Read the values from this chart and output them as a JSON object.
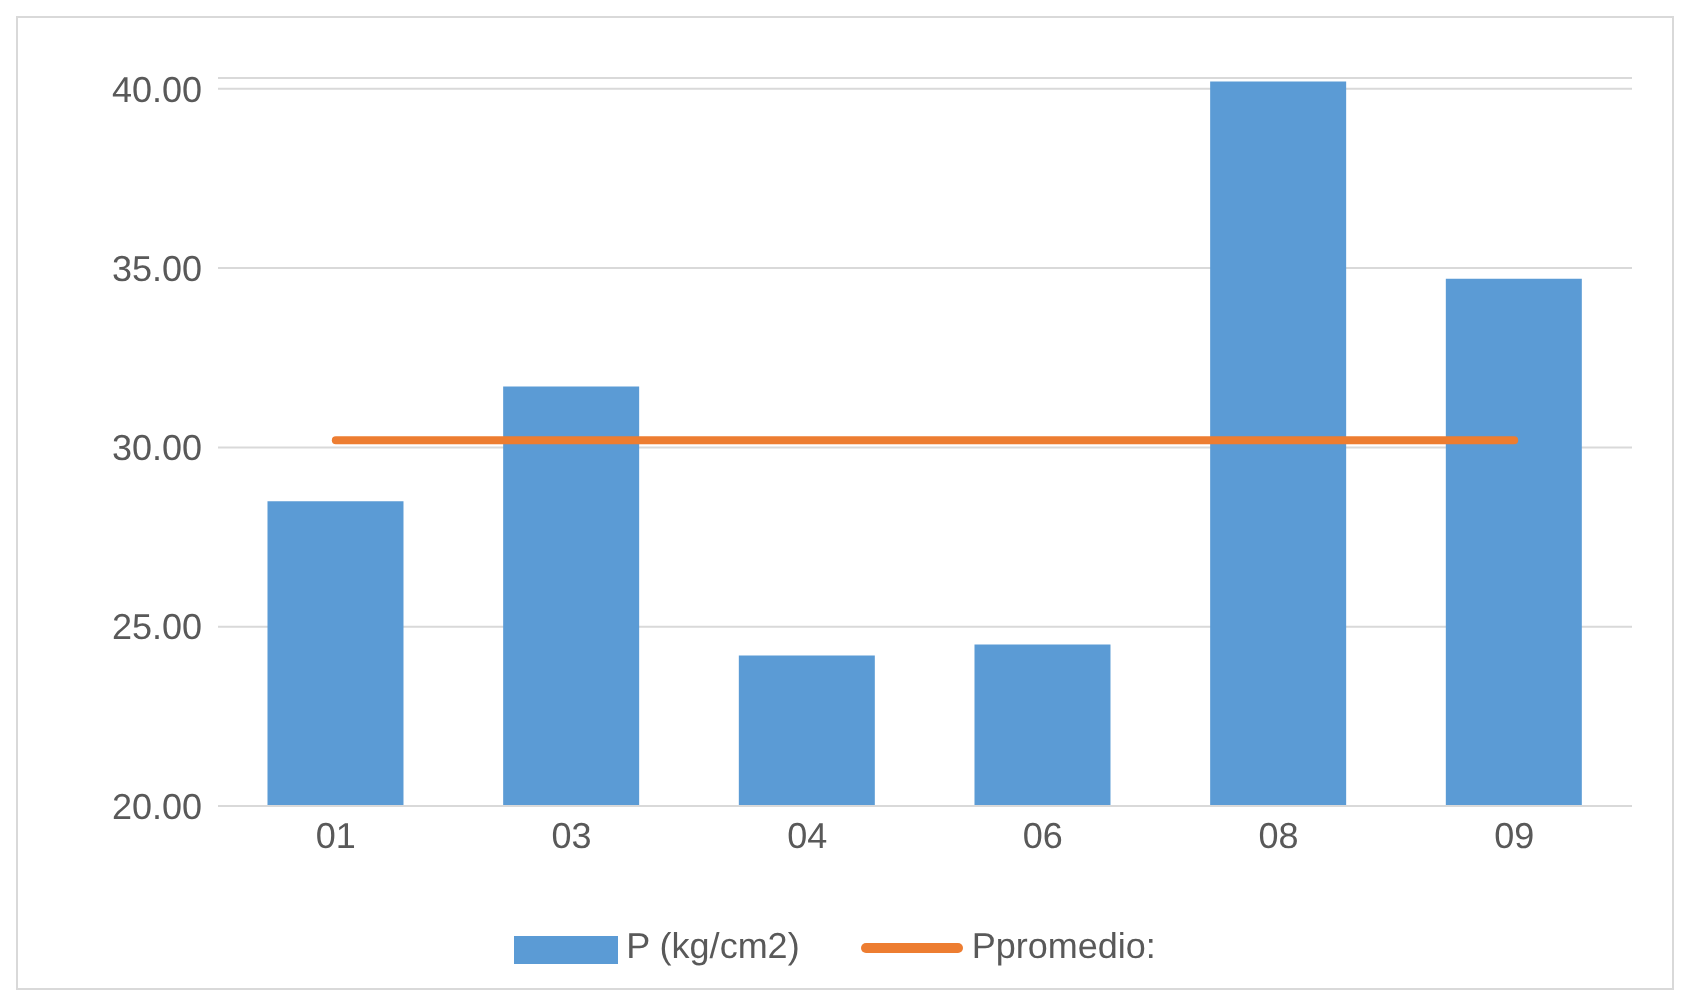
{
  "chart_data": {
    "type": "bar",
    "categories": [
      "01",
      "03",
      "04",
      "06",
      "08",
      "09"
    ],
    "series": [
      {
        "name": "P (kg/cm2)",
        "color": "#5b9bd5",
        "values": [
          28.5,
          31.7,
          24.2,
          24.5,
          40.2,
          34.7
        ]
      },
      {
        "name": "Ppromedio:",
        "type": "line",
        "color": "#ed7d31",
        "values": [
          30.2,
          30.2,
          30.2,
          30.2,
          30.2,
          30.2
        ]
      }
    ],
    "ylim": [
      20,
      40.3
    ],
    "yticks": [
      {
        "value": 20,
        "label": "20.00"
      },
      {
        "value": 25,
        "label": "25.00"
      },
      {
        "value": 30,
        "label": "30.00"
      },
      {
        "value": 35,
        "label": "35.00"
      },
      {
        "value": 40,
        "label": "40.00"
      }
    ],
    "grid": "y",
    "legend": "bottom",
    "marker": "none"
  }
}
